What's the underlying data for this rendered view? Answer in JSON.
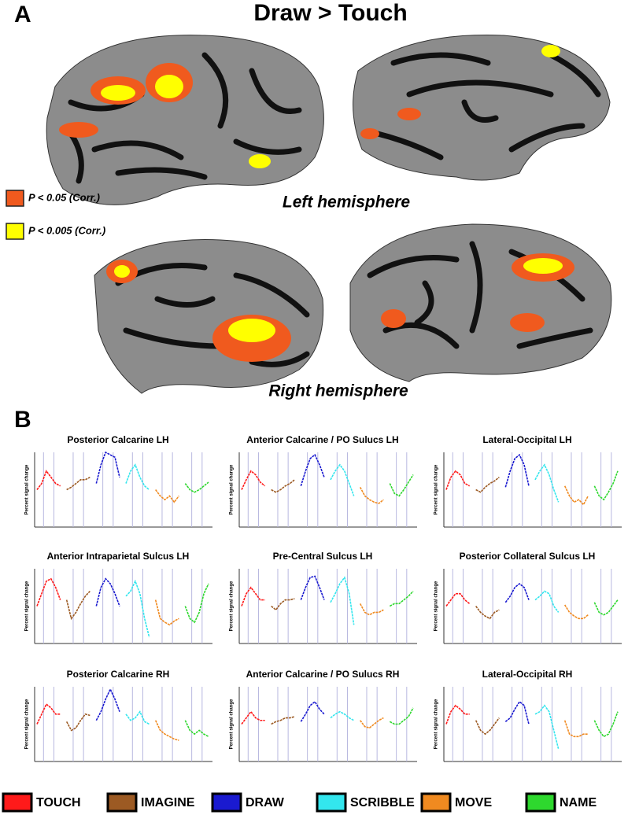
{
  "panel_a": {
    "letter": "A",
    "title": "Draw > Touch",
    "left_label": "Left hemisphere",
    "right_label": "Right hemisphere",
    "thresholds": [
      {
        "label": "P < 0.05 (Corr.)",
        "color": "#f05a1e"
      },
      {
        "label": "P < 0.005 (Corr.)",
        "color": "#ffff00"
      }
    ]
  },
  "panel_b": {
    "letter": "B",
    "y_label": "Percent signal change",
    "ylim": [
      -3,
      3
    ],
    "legend": [
      {
        "name": "TOUCH",
        "color": "#ff1a1a"
      },
      {
        "name": "IMAGINE",
        "color": "#9c5a23"
      },
      {
        "name": "DRAW",
        "color": "#1a1ad0"
      },
      {
        "name": "SCRIBBLE",
        "color": "#33e6ee"
      },
      {
        "name": "MOVE",
        "color": "#f08a20"
      },
      {
        "name": "NAME",
        "color": "#2ed82e"
      }
    ],
    "panels": [
      {
        "title": "Posterior Calcarine LH",
        "curves": [
          [
            0,
            0.5,
            1.5,
            1,
            0.5,
            0.3
          ],
          [
            0,
            0.2,
            0.5,
            0.8,
            0.8,
            1
          ],
          [
            0.5,
            2,
            3,
            2.8,
            2.6,
            1
          ],
          [
            0.5,
            1.5,
            2,
            1,
            0.3,
            0
          ],
          [
            0,
            -0.5,
            -0.8,
            -0.5,
            -1,
            -0.5
          ],
          [
            0.5,
            0,
            -0.2,
            0,
            0.3,
            0.6
          ]
        ]
      },
      {
        "title": "Anterior Calcarine / PO Sulucs LH",
        "curves": [
          [
            0,
            0.8,
            1.5,
            1.2,
            0.6,
            0.3
          ],
          [
            0,
            -0.2,
            0,
            0.3,
            0.5,
            0.8
          ],
          [
            0.3,
            1.5,
            2.5,
            2.8,
            2,
            1
          ],
          [
            0.8,
            1.5,
            2,
            1.5,
            0.5,
            -0.5
          ],
          [
            0.2,
            -0.5,
            -0.8,
            -1,
            -1.1,
            -0.8
          ],
          [
            0.5,
            -0.3,
            -0.5,
            0,
            0.6,
            1.2
          ]
        ]
      },
      {
        "title": "Lateral-Occipital LH",
        "curves": [
          [
            0,
            1,
            1.5,
            1.2,
            0.5,
            0.3
          ],
          [
            0,
            -0.2,
            0.2,
            0.5,
            0.7,
            1
          ],
          [
            0.2,
            1.5,
            2.5,
            2.8,
            2,
            0.3
          ],
          [
            0.8,
            1.5,
            2,
            1.2,
            0,
            -1
          ],
          [
            0.3,
            -0.5,
            -1,
            -0.8,
            -1.2,
            -0.5
          ],
          [
            0.3,
            -0.5,
            -0.8,
            -0.2,
            0.5,
            1.5
          ]
        ]
      },
      {
        "title": "Anterior Intraparietal Sulcus LH",
        "curves": [
          [
            0,
            1,
            2,
            2.2,
            1.5,
            0.5
          ],
          [
            0.5,
            -1,
            -0.5,
            0.2,
            0.8,
            1.2
          ],
          [
            0,
            1.5,
            2.2,
            1.8,
            1,
            0
          ],
          [
            0.8,
            1.2,
            2,
            1,
            -1,
            -2.5
          ],
          [
            0.5,
            -1,
            -1.3,
            -1.5,
            -1.2,
            -1
          ],
          [
            0,
            -1,
            -1.3,
            -0.5,
            1,
            1.8
          ]
        ]
      },
      {
        "title": "Pre-Central Sulcus  LH",
        "curves": [
          [
            0,
            1,
            1.5,
            1,
            0.5,
            0.5
          ],
          [
            0,
            -0.3,
            0.2,
            0.5,
            0.5,
            0.6
          ],
          [
            0.5,
            1.5,
            2.3,
            2.4,
            1.5,
            0.5
          ],
          [
            0.3,
            1,
            1.8,
            2.3,
            1,
            -1.5
          ],
          [
            0.2,
            -0.5,
            -0.7,
            -0.5,
            -0.5,
            -0.3
          ],
          [
            0,
            0.2,
            0.2,
            0.5,
            0.8,
            1.2
          ]
        ]
      },
      {
        "title": "Posterior Collateral Sulcus  LH",
        "curves": [
          [
            0,
            0.5,
            1,
            1,
            0.5,
            0.2
          ],
          [
            0,
            -0.5,
            -0.8,
            -1,
            -0.5,
            -0.3
          ],
          [
            0.3,
            0.8,
            1.5,
            1.8,
            1.5,
            0.5
          ],
          [
            0.5,
            0.8,
            1.2,
            1,
            0,
            -0.5
          ],
          [
            0.1,
            -0.5,
            -0.8,
            -1,
            -1,
            -0.7
          ],
          [
            0.3,
            -0.5,
            -0.7,
            -0.5,
            0,
            0.5
          ]
        ]
      },
      {
        "title": "Posterior Calcarine RH",
        "curves": [
          [
            0,
            0.8,
            1.6,
            1.3,
            0.8,
            0.8
          ],
          [
            0.2,
            -0.5,
            -0.3,
            0.3,
            0.8,
            0.7
          ],
          [
            0.3,
            1,
            2,
            2.8,
            2,
            1
          ],
          [
            0.8,
            0.3,
            0.5,
            1,
            0.2,
            0
          ],
          [
            0.3,
            -0.5,
            -0.8,
            -1,
            -1.2,
            -1.3
          ],
          [
            0.3,
            -0.5,
            -0.8,
            -0.5,
            -0.8,
            -1
          ]
        ]
      },
      {
        "title": "Anterior Calcarine / PO Sulucs RH",
        "curves": [
          [
            0,
            0.5,
            1,
            0.5,
            0.3,
            0.3
          ],
          [
            0,
            0.2,
            0.3,
            0.5,
            0.5,
            0.6
          ],
          [
            0.2,
            0.8,
            1.5,
            1.8,
            1.2,
            0.8
          ],
          [
            0.5,
            0.8,
            1,
            0.8,
            0.5,
            0.3
          ],
          [
            0.3,
            -0.2,
            -0.3,
            0,
            0.3,
            0.5
          ],
          [
            0.2,
            0,
            0,
            0.3,
            0.6,
            1.3
          ]
        ]
      },
      {
        "title": "Lateral-Occipital RH",
        "curves": [
          [
            0,
            1,
            1.5,
            1.2,
            0.8,
            0.8
          ],
          [
            0.3,
            -0.5,
            -0.8,
            -0.5,
            0,
            0.5
          ],
          [
            0.2,
            0.5,
            1.2,
            1.8,
            1.5,
            0
          ],
          [
            0.8,
            1,
            1.5,
            1,
            -0.5,
            -2
          ],
          [
            0.3,
            -0.8,
            -1,
            -1,
            -0.8,
            -0.8
          ],
          [
            0.3,
            -0.5,
            -1,
            -0.8,
            0,
            1
          ]
        ]
      }
    ]
  }
}
